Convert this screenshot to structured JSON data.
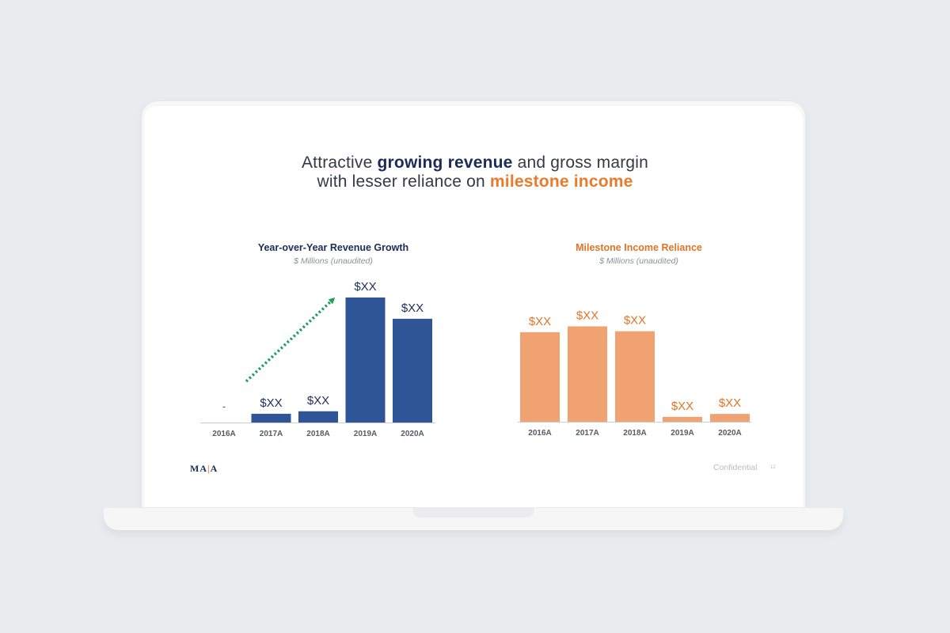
{
  "slide": {
    "headline_line1": {
      "prefix": "Attractive ",
      "highlight": "growing revenue",
      "suffix": " and gross margin"
    },
    "headline_line2": {
      "prefix": "with lesser reliance on ",
      "highlight": "milestone income"
    },
    "logo": {
      "part1": "MA",
      "divider": "|",
      "part2": "A"
    },
    "footer_label": "Confidential",
    "page_number": "12"
  },
  "colors": {
    "navy": "#2f5597",
    "navy_text": "#1c2c5a",
    "orange": "#f0a270",
    "orange_text": "#e07427",
    "arrow_green": "#1e9e5c"
  },
  "chart_data": [
    {
      "type": "bar",
      "title": "Year-over-Year Revenue Growth",
      "subtitle": "$ Millions (unaudited)",
      "categories": [
        "2016A",
        "2017A",
        "2018A",
        "2019A",
        "2020A"
      ],
      "values": [
        0,
        7,
        9,
        100,
        83
      ],
      "data_labels": [
        "-",
        "$XX",
        "$XX",
        "$XX",
        "$XX"
      ],
      "ylim": [
        0,
        100
      ],
      "grid": false,
      "annotation": "dotted-arrow-upward"
    },
    {
      "type": "bar",
      "title": "Milestone Income Reliance",
      "subtitle": "$ Millions (unaudited)",
      "categories": [
        "2016A",
        "2017A",
        "2018A",
        "2019A",
        "2020A"
      ],
      "values": [
        92,
        98,
        93,
        5,
        8
      ],
      "data_labels": [
        "$XX",
        "$XX",
        "$XX",
        "$XX",
        "$XX"
      ],
      "ylim": [
        0,
        100
      ],
      "grid": false
    }
  ]
}
